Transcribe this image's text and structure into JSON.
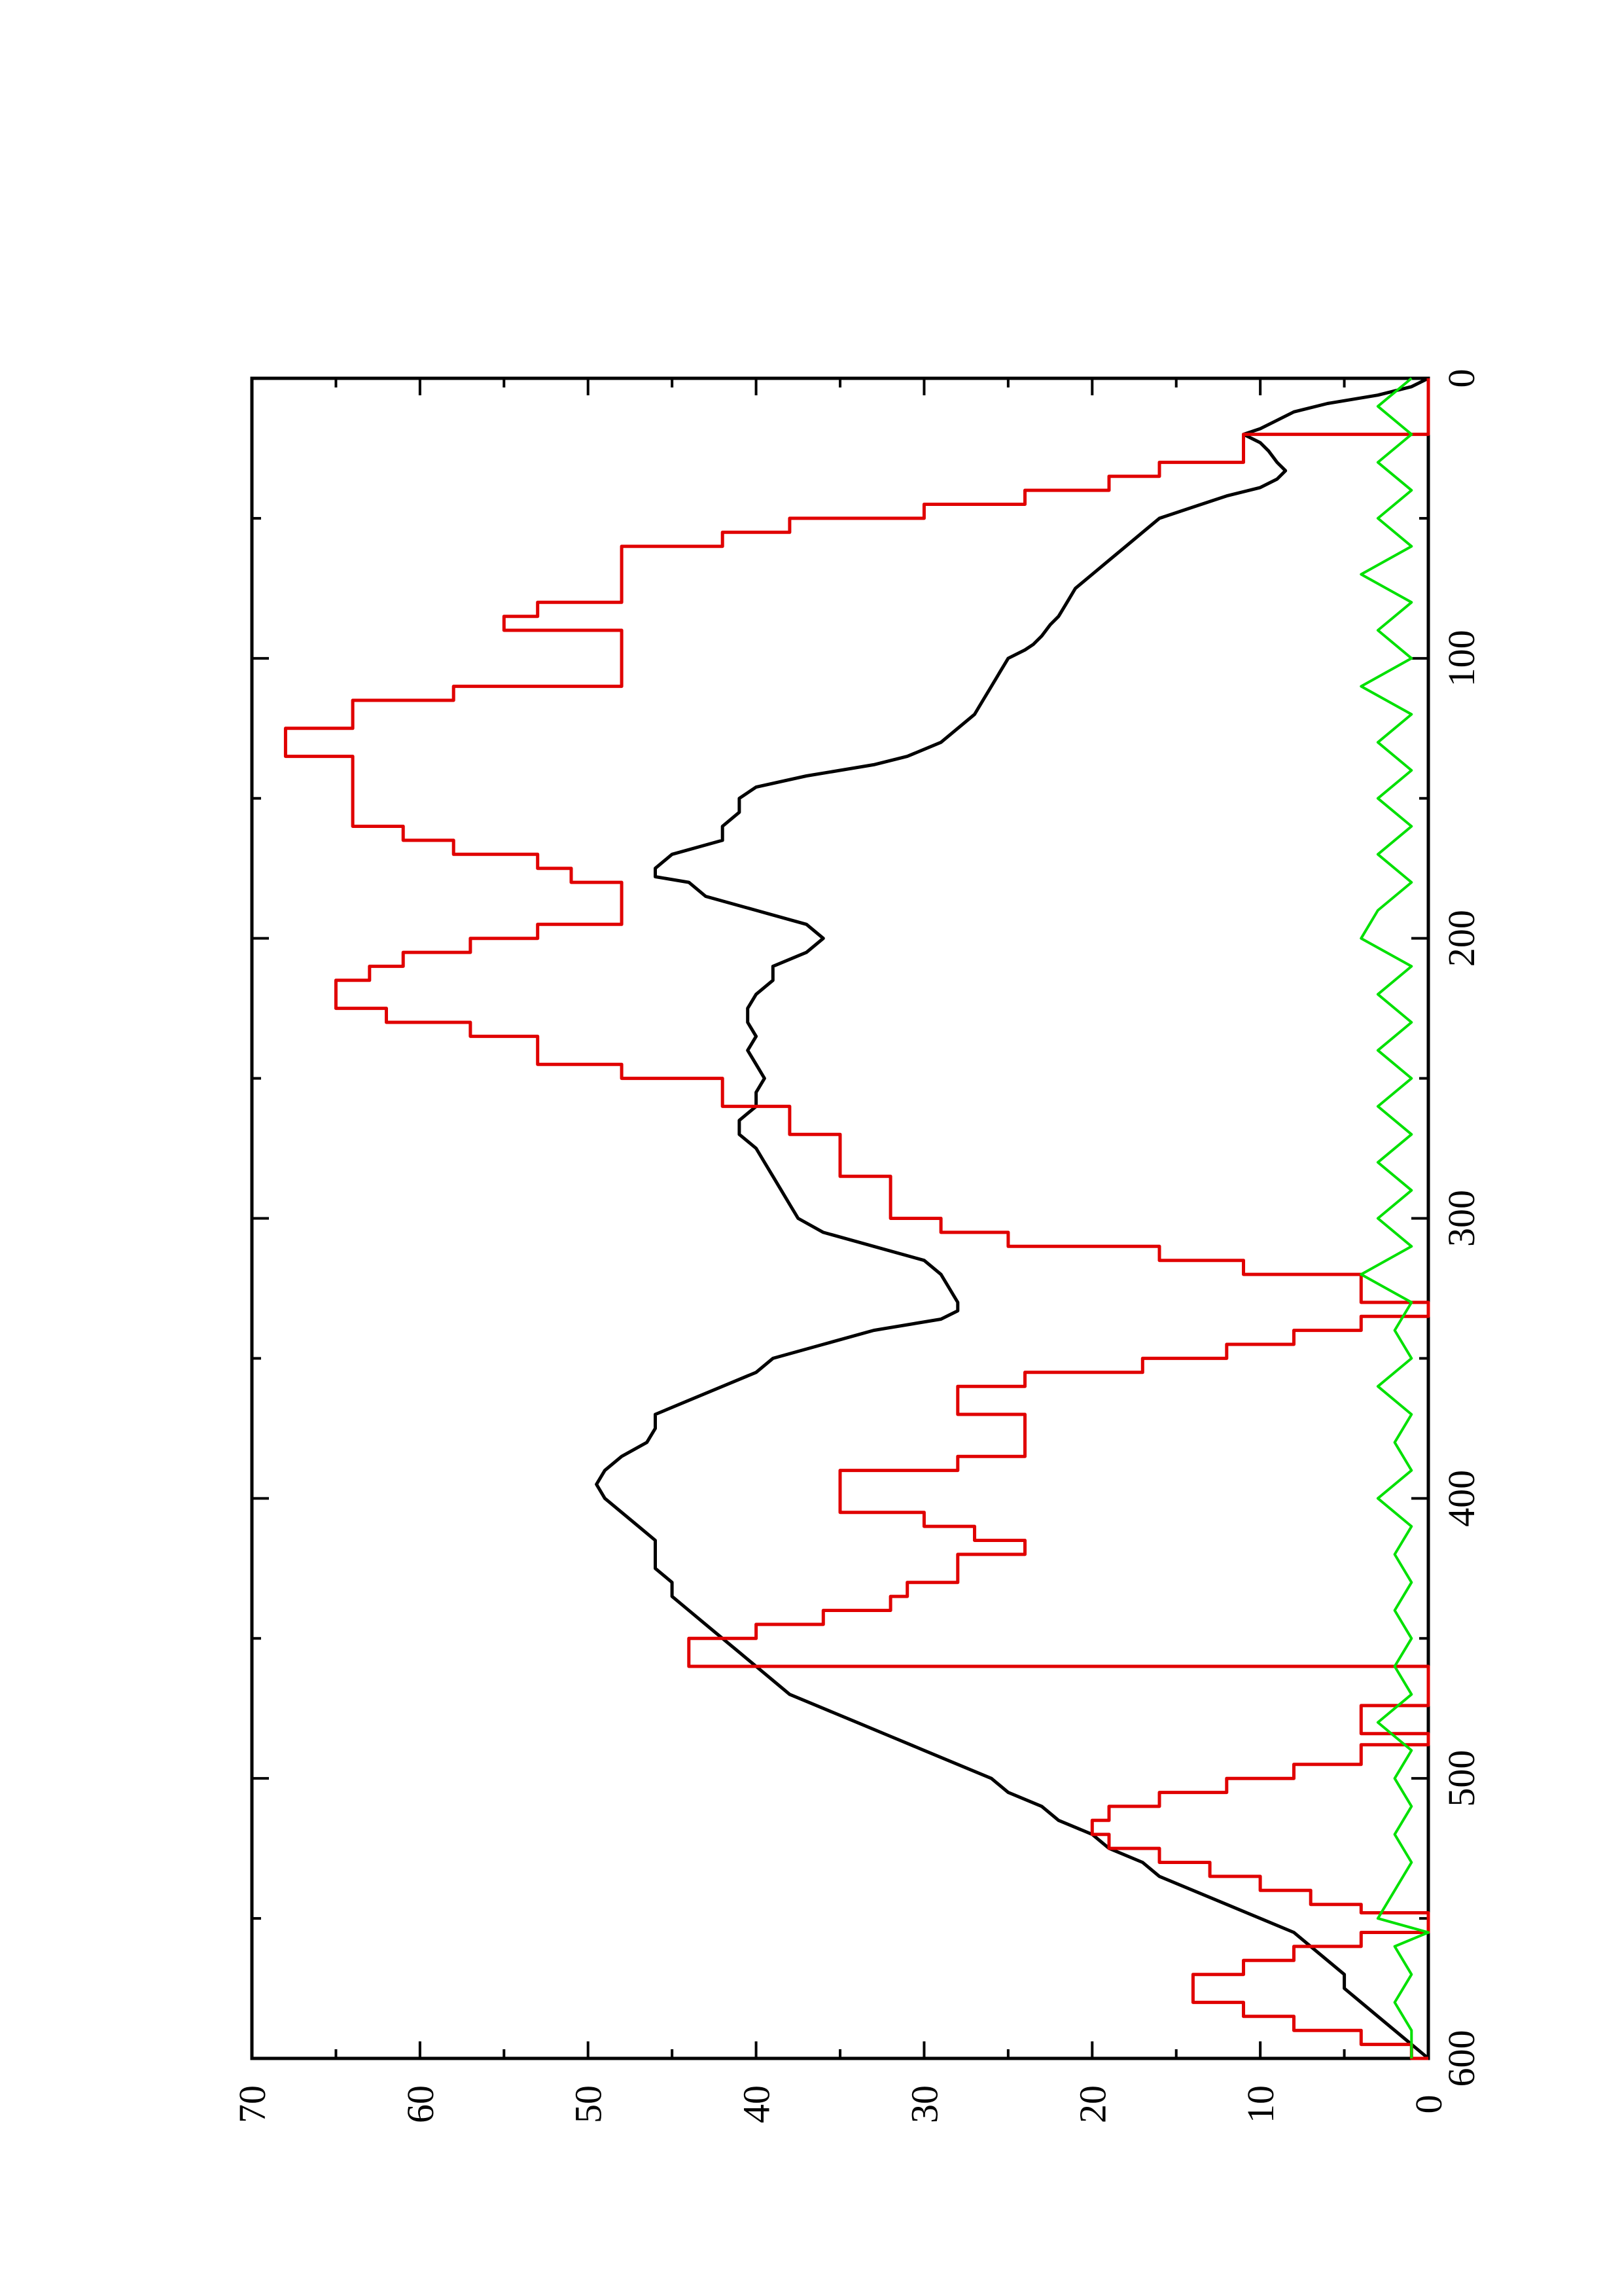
{
  "chart_data": {
    "type": "line",
    "title": "",
    "xlabel": "",
    "ylabel": "",
    "orientation": "rotated-90-clockwise",
    "xlim": [
      0,
      600
    ],
    "ylim": [
      0,
      70
    ],
    "x_ticks": [
      "0",
      "100",
      "200",
      "300",
      "400",
      "500",
      "600"
    ],
    "y_ticks": [
      "0",
      "10",
      "20",
      "30",
      "40",
      "50",
      "60",
      "70"
    ],
    "grid": false,
    "legend": "none",
    "series": [
      {
        "color": "#000000",
        "style": "line",
        "points": [
          [
            0,
            0
          ],
          [
            3,
            1
          ],
          [
            6,
            3
          ],
          [
            9,
            6
          ],
          [
            12,
            8
          ],
          [
            15,
            9
          ],
          [
            18,
            10
          ],
          [
            20,
            11
          ],
          [
            23,
            10
          ],
          [
            26,
            9.5
          ],
          [
            30,
            9
          ],
          [
            33,
            8.5
          ],
          [
            36,
            9
          ],
          [
            39,
            10
          ],
          [
            42,
            12
          ],
          [
            46,
            14
          ],
          [
            50,
            16
          ],
          [
            55,
            17
          ],
          [
            60,
            18
          ],
          [
            65,
            19
          ],
          [
            70,
            20
          ],
          [
            75,
            21
          ],
          [
            80,
            21.5
          ],
          [
            85,
            22
          ],
          [
            88,
            22.5
          ],
          [
            92,
            23
          ],
          [
            95,
            23.5
          ],
          [
            97,
            24
          ],
          [
            100,
            25
          ],
          [
            105,
            25.5
          ],
          [
            110,
            26
          ],
          [
            115,
            26.5
          ],
          [
            120,
            27
          ],
          [
            125,
            28
          ],
          [
            130,
            29
          ],
          [
            135,
            31
          ],
          [
            138,
            33
          ],
          [
            142,
            37
          ],
          [
            146,
            40
          ],
          [
            150,
            41
          ],
          [
            155,
            41
          ],
          [
            160,
            42
          ],
          [
            165,
            42
          ],
          [
            170,
            45
          ],
          [
            175,
            46
          ],
          [
            178,
            46
          ],
          [
            180,
            44
          ],
          [
            185,
            43
          ],
          [
            190,
            40
          ],
          [
            195,
            37
          ],
          [
            200,
            36
          ],
          [
            205,
            37
          ],
          [
            210,
            39
          ],
          [
            215,
            39
          ],
          [
            220,
            40
          ],
          [
            225,
            40.5
          ],
          [
            230,
            40.5
          ],
          [
            235,
            40
          ],
          [
            240,
            40.5
          ],
          [
            245,
            40
          ],
          [
            250,
            39.5
          ],
          [
            255,
            40
          ],
          [
            260,
            40
          ],
          [
            265,
            41
          ],
          [
            270,
            41
          ],
          [
            275,
            40
          ],
          [
            280,
            39.5
          ],
          [
            285,
            39
          ],
          [
            290,
            38.5
          ],
          [
            295,
            38
          ],
          [
            300,
            37.5
          ],
          [
            305,
            36
          ],
          [
            310,
            33
          ],
          [
            315,
            30
          ],
          [
            320,
            29
          ],
          [
            325,
            28.5
          ],
          [
            330,
            28
          ],
          [
            333,
            28
          ],
          [
            336,
            29
          ],
          [
            340,
            33
          ],
          [
            345,
            36
          ],
          [
            350,
            39
          ],
          [
            355,
            40
          ],
          [
            360,
            42
          ],
          [
            365,
            44
          ],
          [
            370,
            46
          ],
          [
            375,
            46
          ],
          [
            380,
            46.5
          ],
          [
            385,
            48
          ],
          [
            390,
            49
          ],
          [
            395,
            49.5
          ],
          [
            400,
            49
          ],
          [
            405,
            48
          ],
          [
            410,
            47
          ],
          [
            415,
            46
          ],
          [
            420,
            46
          ],
          [
            425,
            46
          ],
          [
            430,
            45
          ],
          [
            435,
            45
          ],
          [
            440,
            44
          ],
          [
            445,
            43
          ],
          [
            450,
            42
          ],
          [
            455,
            41
          ],
          [
            460,
            40
          ],
          [
            465,
            39
          ],
          [
            470,
            38
          ],
          [
            475,
            36
          ],
          [
            480,
            34
          ],
          [
            485,
            32
          ],
          [
            490,
            30
          ],
          [
            495,
            28
          ],
          [
            500,
            26
          ],
          [
            505,
            25
          ],
          [
            510,
            23
          ],
          [
            515,
            22
          ],
          [
            520,
            20
          ],
          [
            525,
            19
          ],
          [
            530,
            17
          ],
          [
            535,
            16
          ],
          [
            540,
            14
          ],
          [
            545,
            12
          ],
          [
            550,
            10
          ],
          [
            555,
            8
          ],
          [
            560,
            7
          ],
          [
            565,
            6
          ],
          [
            570,
            5
          ],
          [
            575,
            5
          ],
          [
            580,
            4
          ],
          [
            585,
            3
          ],
          [
            590,
            2
          ],
          [
            595,
            1
          ],
          [
            600,
            0
          ]
        ]
      },
      {
        "color": "#e00000",
        "style": "step",
        "points": [
          [
            0,
            0
          ],
          [
            10,
            0
          ],
          [
            20,
            11
          ],
          [
            25,
            11
          ],
          [
            30,
            16
          ],
          [
            35,
            19
          ],
          [
            40,
            24
          ],
          [
            45,
            30
          ],
          [
            50,
            38
          ],
          [
            55,
            42
          ],
          [
            60,
            48
          ],
          [
            75,
            48
          ],
          [
            80,
            53
          ],
          [
            85,
            55
          ],
          [
            90,
            48
          ],
          [
            105,
            48
          ],
          [
            110,
            58
          ],
          [
            115,
            64
          ],
          [
            120,
            64
          ],
          [
            125,
            68
          ],
          [
            130,
            68
          ],
          [
            135,
            64
          ],
          [
            155,
            64
          ],
          [
            160,
            61
          ],
          [
            165,
            58
          ],
          [
            170,
            53
          ],
          [
            175,
            51
          ],
          [
            180,
            48
          ],
          [
            190,
            48
          ],
          [
            195,
            53
          ],
          [
            200,
            57
          ],
          [
            205,
            61
          ],
          [
            210,
            63
          ],
          [
            215,
            65
          ],
          [
            220,
            65
          ],
          [
            225,
            62
          ],
          [
            230,
            57
          ],
          [
            235,
            53
          ],
          [
            245,
            48
          ],
          [
            250,
            42
          ],
          [
            260,
            38
          ],
          [
            270,
            35
          ],
          [
            280,
            35
          ],
          [
            285,
            32
          ],
          [
            295,
            32
          ],
          [
            300,
            29
          ],
          [
            305,
            25
          ],
          [
            310,
            16
          ],
          [
            315,
            11
          ],
          [
            320,
            4
          ],
          [
            330,
            0
          ],
          [
            335,
            4
          ],
          [
            340,
            8
          ],
          [
            345,
            12
          ],
          [
            350,
            17
          ],
          [
            355,
            24
          ],
          [
            360,
            28
          ],
          [
            370,
            24
          ],
          [
            378,
            24
          ],
          [
            385,
            28
          ],
          [
            390,
            35
          ],
          [
            400,
            35
          ],
          [
            405,
            30
          ],
          [
            410,
            27
          ],
          [
            415,
            24
          ],
          [
            420,
            28
          ],
          [
            430,
            31
          ],
          [
            435,
            32
          ],
          [
            440,
            36
          ],
          [
            445,
            40
          ],
          [
            450,
            44
          ],
          [
            460,
            0
          ],
          [
            465,
            0
          ],
          [
            470,
            0
          ],
          [
            474,
            4
          ],
          [
            476,
            4
          ],
          [
            480,
            4
          ],
          [
            482,
            4
          ],
          [
            484,
            0
          ],
          [
            486,
            0
          ],
          [
            488,
            4
          ],
          [
            490,
            4
          ],
          [
            495,
            8
          ],
          [
            500,
            12
          ],
          [
            505,
            16
          ],
          [
            510,
            19
          ],
          [
            515,
            20
          ],
          [
            520,
            19
          ],
          [
            525,
            16
          ],
          [
            530,
            13
          ],
          [
            535,
            10
          ],
          [
            540,
            7
          ],
          [
            545,
            4
          ],
          [
            548,
            0
          ],
          [
            550,
            0
          ],
          [
            555,
            4
          ],
          [
            560,
            8
          ],
          [
            565,
            11
          ],
          [
            570,
            14
          ],
          [
            575,
            14
          ],
          [
            580,
            11
          ],
          [
            585,
            8
          ],
          [
            590,
            4
          ],
          [
            595,
            1
          ],
          [
            600,
            0
          ]
        ]
      },
      {
        "color": "#00e000",
        "style": "noise",
        "points": [
          [
            0,
            1
          ],
          [
            10,
            3
          ],
          [
            20,
            1
          ],
          [
            30,
            3
          ],
          [
            40,
            1
          ],
          [
            50,
            3
          ],
          [
            60,
            1
          ],
          [
            70,
            4
          ],
          [
            80,
            1
          ],
          [
            90,
            3
          ],
          [
            100,
            1
          ],
          [
            110,
            4
          ],
          [
            120,
            1
          ],
          [
            130,
            3
          ],
          [
            140,
            1
          ],
          [
            150,
            3
          ],
          [
            160,
            1
          ],
          [
            170,
            3
          ],
          [
            180,
            1
          ],
          [
            190,
            3
          ],
          [
            200,
            4
          ],
          [
            210,
            1
          ],
          [
            220,
            3
          ],
          [
            230,
            1
          ],
          [
            240,
            3
          ],
          [
            250,
            1
          ],
          [
            260,
            3
          ],
          [
            270,
            1
          ],
          [
            280,
            3
          ],
          [
            290,
            1
          ],
          [
            300,
            3
          ],
          [
            310,
            1
          ],
          [
            320,
            4
          ],
          [
            330,
            1
          ],
          [
            340,
            2
          ],
          [
            350,
            1
          ],
          [
            360,
            3
          ],
          [
            370,
            1
          ],
          [
            380,
            2
          ],
          [
            390,
            1
          ],
          [
            400,
            3
          ],
          [
            410,
            1
          ],
          [
            420,
            2
          ],
          [
            430,
            1
          ],
          [
            440,
            2
          ],
          [
            450,
            1
          ],
          [
            460,
            2
          ],
          [
            470,
            1
          ],
          [
            480,
            3
          ],
          [
            490,
            1
          ],
          [
            500,
            2
          ],
          [
            510,
            1
          ],
          [
            520,
            2
          ],
          [
            530,
            1
          ],
          [
            540,
            2
          ],
          [
            550,
            3
          ],
          [
            555,
            0
          ],
          [
            560,
            2
          ],
          [
            570,
            1
          ],
          [
            580,
            2
          ],
          [
            590,
            1
          ],
          [
            600,
            1
          ]
        ]
      }
    ]
  }
}
